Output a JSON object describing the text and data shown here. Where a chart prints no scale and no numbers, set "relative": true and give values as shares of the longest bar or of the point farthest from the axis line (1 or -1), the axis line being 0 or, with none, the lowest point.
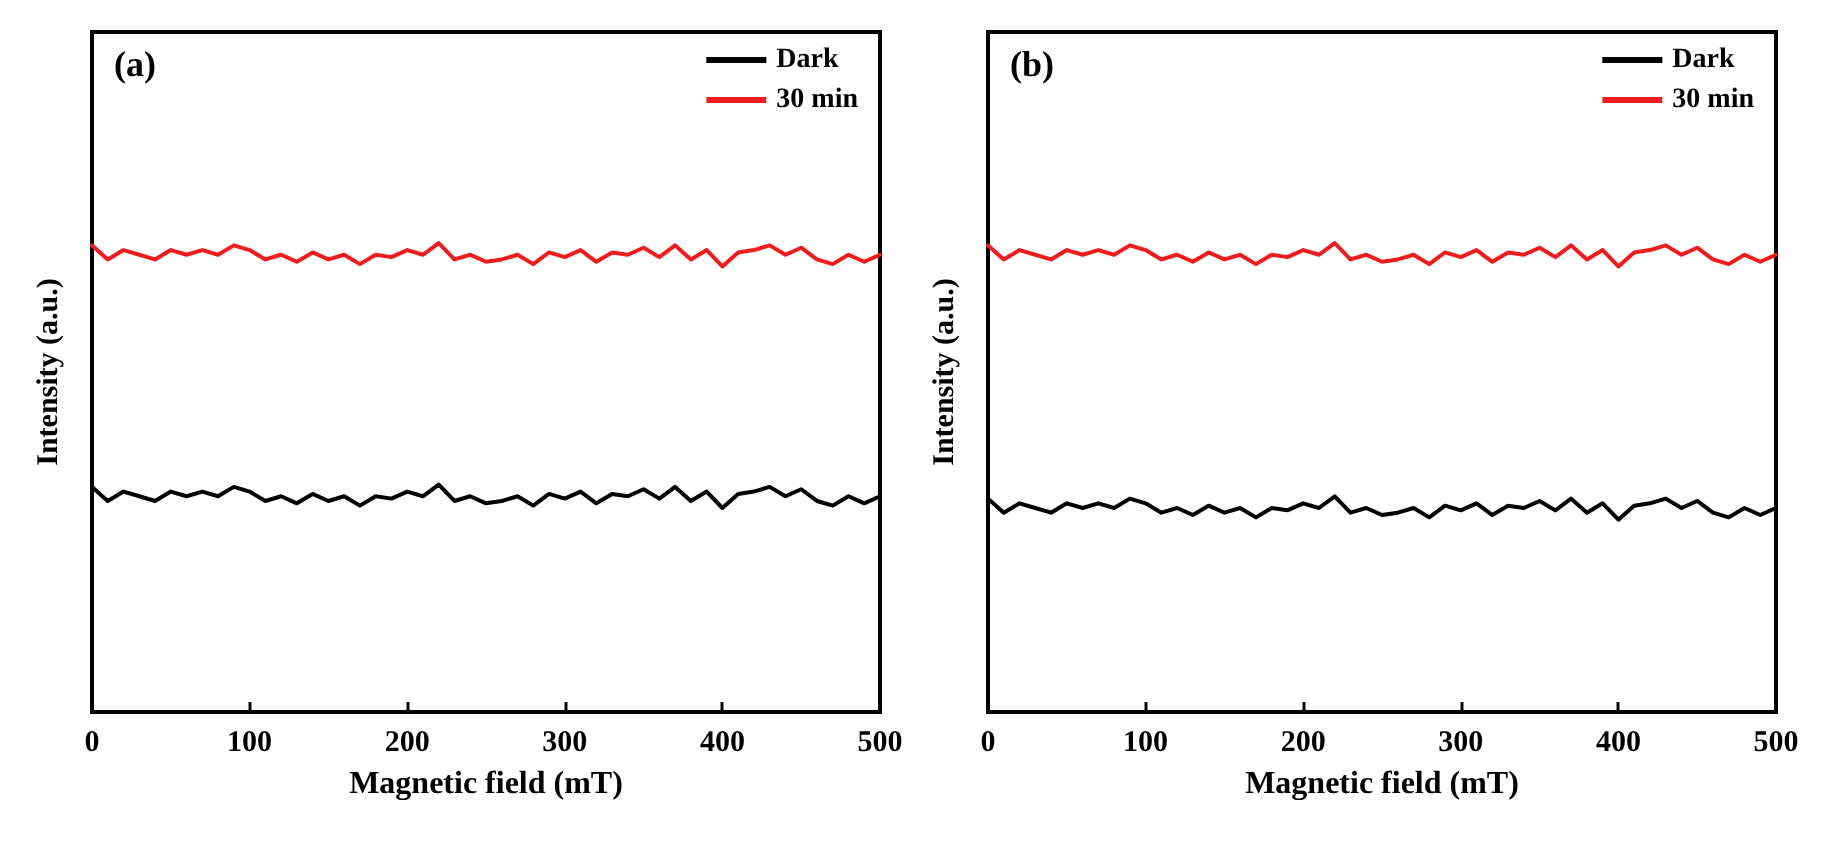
{
  "chart_data": [
    {
      "type": "line",
      "title": "(a)",
      "xlabel": "Magnetic field (mT)",
      "ylabel": "Intensity (a.u.)",
      "relative": true,
      "x": [
        0,
        10,
        20,
        30,
        40,
        50,
        60,
        70,
        80,
        90,
        100,
        110,
        120,
        130,
        140,
        150,
        160,
        170,
        180,
        190,
        200,
        210,
        220,
        230,
        240,
        250,
        260,
        270,
        280,
        290,
        300,
        310,
        320,
        330,
        340,
        350,
        360,
        370,
        380,
        390,
        400,
        410,
        420,
        430,
        440,
        450,
        460,
        470,
        480,
        490,
        500
      ],
      "xlim": [
        0,
        500
      ],
      "xticks": [
        0,
        100,
        200,
        300,
        400,
        500
      ],
      "tick_labels": "x",
      "grid": false,
      "legend": "top right",
      "marker": "none",
      "line_style": "solid",
      "series": [
        {
          "name": "Dark",
          "color": "#000000",
          "values": [
            0.48,
            0.45,
            0.47,
            0.46,
            0.45,
            0.47,
            0.46,
            0.47,
            0.46,
            0.48,
            0.47,
            0.45,
            0.46,
            0.445,
            0.465,
            0.45,
            0.46,
            0.44,
            0.46,
            0.455,
            0.47,
            0.46,
            0.485,
            0.45,
            0.46,
            0.445,
            0.45,
            0.46,
            0.44,
            0.465,
            0.455,
            0.47,
            0.445,
            0.465,
            0.46,
            0.475,
            0.455,
            0.48,
            0.45,
            0.47,
            0.435,
            0.465,
            0.47,
            0.48,
            0.46,
            0.475,
            0.45,
            0.44,
            0.46,
            0.445,
            0.46
          ]
        },
        {
          "name": "30 min",
          "color": "#ee1c1c",
          "values": [
            0.995,
            0.965,
            0.985,
            0.975,
            0.965,
            0.985,
            0.975,
            0.985,
            0.975,
            0.995,
            0.985,
            0.965,
            0.975,
            0.96,
            0.98,
            0.965,
            0.975,
            0.955,
            0.975,
            0.97,
            0.985,
            0.975,
            1.0,
            0.965,
            0.975,
            0.96,
            0.965,
            0.975,
            0.955,
            0.98,
            0.97,
            0.985,
            0.96,
            0.98,
            0.975,
            0.99,
            0.97,
            0.995,
            0.965,
            0.985,
            0.95,
            0.98,
            0.985,
            0.995,
            0.975,
            0.99,
            0.965,
            0.955,
            0.975,
            0.96,
            0.975
          ]
        }
      ]
    },
    {
      "type": "line",
      "title": "(b)",
      "xlabel": "Magnetic field (mT)",
      "ylabel": "Intensity (a.u.)",
      "relative": true,
      "x": [
        0,
        10,
        20,
        30,
        40,
        50,
        60,
        70,
        80,
        90,
        100,
        110,
        120,
        130,
        140,
        150,
        160,
        170,
        180,
        190,
        200,
        210,
        220,
        230,
        240,
        250,
        260,
        270,
        280,
        290,
        300,
        310,
        320,
        330,
        340,
        350,
        360,
        370,
        380,
        390,
        400,
        410,
        420,
        430,
        440,
        450,
        460,
        470,
        480,
        490,
        500
      ],
      "xlim": [
        0,
        500
      ],
      "xticks": [
        0,
        100,
        200,
        300,
        400,
        500
      ],
      "tick_labels": "x",
      "grid": false,
      "legend": "top right",
      "marker": "none",
      "line_style": "solid",
      "series": [
        {
          "name": "Dark",
          "color": "#000000",
          "values": [
            0.455,
            0.425,
            0.445,
            0.435,
            0.425,
            0.445,
            0.435,
            0.445,
            0.435,
            0.455,
            0.445,
            0.425,
            0.435,
            0.42,
            0.44,
            0.425,
            0.435,
            0.415,
            0.435,
            0.43,
            0.445,
            0.435,
            0.46,
            0.425,
            0.435,
            0.42,
            0.425,
            0.435,
            0.415,
            0.44,
            0.43,
            0.445,
            0.42,
            0.44,
            0.435,
            0.45,
            0.43,
            0.455,
            0.425,
            0.445,
            0.41,
            0.44,
            0.445,
            0.455,
            0.435,
            0.45,
            0.425,
            0.415,
            0.435,
            0.42,
            0.435
          ]
        },
        {
          "name": "30 min",
          "color": "#ee1c1c",
          "values": [
            0.995,
            0.965,
            0.985,
            0.975,
            0.965,
            0.985,
            0.975,
            0.985,
            0.975,
            0.995,
            0.985,
            0.965,
            0.975,
            0.96,
            0.98,
            0.965,
            0.975,
            0.955,
            0.975,
            0.97,
            0.985,
            0.975,
            1.0,
            0.965,
            0.975,
            0.96,
            0.965,
            0.975,
            0.955,
            0.98,
            0.97,
            0.985,
            0.96,
            0.98,
            0.975,
            0.99,
            0.97,
            0.995,
            0.965,
            0.985,
            0.95,
            0.98,
            0.985,
            0.995,
            0.975,
            0.99,
            0.965,
            0.955,
            0.975,
            0.96,
            0.975
          ]
        }
      ]
    }
  ]
}
